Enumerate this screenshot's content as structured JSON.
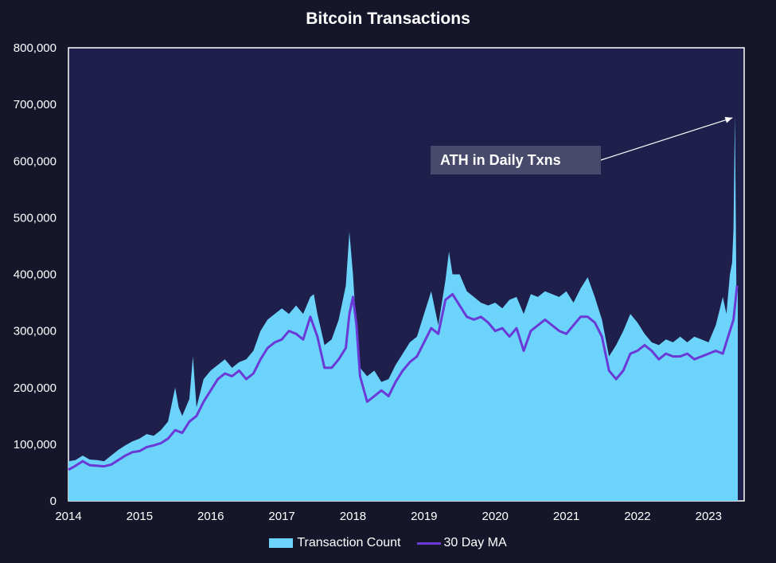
{
  "chart_data": {
    "type": "area",
    "title": "Bitcoin Transactions",
    "xlabel": "",
    "ylabel": "",
    "x_ticks": [
      "2014",
      "2015",
      "2016",
      "2017",
      "2018",
      "2019",
      "2020",
      "2021",
      "2022",
      "2023"
    ],
    "y_ticks": [
      "0",
      "100,000",
      "200,000",
      "300,000",
      "400,000",
      "500,000",
      "600,000",
      "700,000",
      "800,000"
    ],
    "xlim": [
      2014.0,
      2023.5
    ],
    "ylim": [
      0,
      800000
    ],
    "grid": false,
    "legend_position": "bottom",
    "annotation": {
      "text": "ATH in Daily Txns",
      "points_to": [
        2023.37,
        682000
      ]
    },
    "colors": {
      "background": "#16162b",
      "plot_area": "#1f1f4b",
      "area": "#6cd4fb",
      "ma_line": "#6a39d6",
      "annotation_box": "#474a6b"
    },
    "series": [
      {
        "name": "Transaction Count",
        "type": "area",
        "x": [
          2014.0,
          2014.1,
          2014.2,
          2014.3,
          2014.4,
          2014.5,
          2014.6,
          2014.7,
          2014.8,
          2014.9,
          2015.0,
          2015.1,
          2015.2,
          2015.3,
          2015.4,
          2015.5,
          2015.55,
          2015.6,
          2015.7,
          2015.75,
          2015.8,
          2015.9,
          2016.0,
          2016.1,
          2016.2,
          2016.3,
          2016.4,
          2016.5,
          2016.6,
          2016.7,
          2016.8,
          2016.9,
          2017.0,
          2017.1,
          2017.2,
          2017.3,
          2017.4,
          2017.45,
          2017.5,
          2017.6,
          2017.7,
          2017.8,
          2017.9,
          2017.95,
          2018.0,
          2018.05,
          2018.1,
          2018.2,
          2018.3,
          2018.4,
          2018.5,
          2018.6,
          2018.7,
          2018.8,
          2018.9,
          2019.0,
          2019.1,
          2019.2,
          2019.3,
          2019.35,
          2019.4,
          2019.5,
          2019.6,
          2019.7,
          2019.8,
          2019.9,
          2020.0,
          2020.1,
          2020.2,
          2020.3,
          2020.4,
          2020.5,
          2020.6,
          2020.7,
          2020.8,
          2020.9,
          2021.0,
          2021.1,
          2021.2,
          2021.3,
          2021.4,
          2021.5,
          2021.6,
          2021.7,
          2021.8,
          2021.9,
          2022.0,
          2022.1,
          2022.2,
          2022.3,
          2022.4,
          2022.5,
          2022.6,
          2022.7,
          2022.8,
          2022.9,
          2023.0,
          2023.1,
          2023.2,
          2023.25,
          2023.3,
          2023.33,
          2023.35,
          2023.37,
          2023.39,
          2023.41
        ],
        "values": [
          70000,
          72000,
          80000,
          73000,
          72000,
          70000,
          80000,
          90000,
          98000,
          105000,
          110000,
          118000,
          115000,
          125000,
          140000,
          200000,
          165000,
          150000,
          180000,
          255000,
          165000,
          215000,
          230000,
          240000,
          250000,
          235000,
          245000,
          250000,
          265000,
          300000,
          320000,
          330000,
          340000,
          330000,
          345000,
          330000,
          360000,
          365000,
          330000,
          275000,
          285000,
          320000,
          380000,
          475000,
          400000,
          300000,
          235000,
          220000,
          230000,
          210000,
          215000,
          240000,
          260000,
          280000,
          290000,
          330000,
          370000,
          310000,
          390000,
          440000,
          400000,
          400000,
          370000,
          360000,
          350000,
          345000,
          350000,
          340000,
          355000,
          360000,
          330000,
          365000,
          360000,
          370000,
          365000,
          360000,
          370000,
          350000,
          375000,
          395000,
          360000,
          320000,
          255000,
          275000,
          300000,
          330000,
          315000,
          295000,
          280000,
          275000,
          285000,
          280000,
          290000,
          280000,
          290000,
          285000,
          280000,
          310000,
          360000,
          330000,
          400000,
          420000,
          480000,
          682000,
          380000,
          375000
        ]
      },
      {
        "name": "30 Day MA",
        "type": "line",
        "x": [
          2014.0,
          2014.1,
          2014.2,
          2014.3,
          2014.4,
          2014.5,
          2014.6,
          2014.7,
          2014.8,
          2014.9,
          2015.0,
          2015.1,
          2015.2,
          2015.3,
          2015.4,
          2015.5,
          2015.6,
          2015.7,
          2015.8,
          2015.9,
          2016.0,
          2016.1,
          2016.2,
          2016.3,
          2016.4,
          2016.5,
          2016.6,
          2016.7,
          2016.8,
          2016.9,
          2017.0,
          2017.1,
          2017.2,
          2017.3,
          2017.4,
          2017.5,
          2017.6,
          2017.7,
          2017.8,
          2017.9,
          2017.95,
          2018.0,
          2018.05,
          2018.1,
          2018.2,
          2018.3,
          2018.4,
          2018.5,
          2018.6,
          2018.7,
          2018.8,
          2018.9,
          2019.0,
          2019.1,
          2019.2,
          2019.3,
          2019.4,
          2019.5,
          2019.6,
          2019.7,
          2019.8,
          2019.9,
          2020.0,
          2020.1,
          2020.2,
          2020.3,
          2020.4,
          2020.5,
          2020.6,
          2020.7,
          2020.8,
          2020.9,
          2021.0,
          2021.1,
          2021.2,
          2021.3,
          2021.4,
          2021.5,
          2021.6,
          2021.7,
          2021.8,
          2021.9,
          2022.0,
          2022.1,
          2022.2,
          2022.3,
          2022.4,
          2022.5,
          2022.6,
          2022.7,
          2022.8,
          2022.9,
          2023.0,
          2023.1,
          2023.2,
          2023.3,
          2023.35,
          2023.4
        ],
        "values": [
          55000,
          62000,
          70000,
          63000,
          62000,
          61000,
          64000,
          72000,
          80000,
          86000,
          88000,
          95000,
          98000,
          102000,
          110000,
          125000,
          120000,
          140000,
          150000,
          175000,
          195000,
          215000,
          225000,
          220000,
          230000,
          215000,
          225000,
          250000,
          270000,
          280000,
          285000,
          300000,
          295000,
          285000,
          325000,
          290000,
          235000,
          235000,
          250000,
          270000,
          330000,
          360000,
          310000,
          220000,
          175000,
          185000,
          195000,
          185000,
          210000,
          230000,
          245000,
          255000,
          280000,
          305000,
          295000,
          355000,
          365000,
          345000,
          325000,
          320000,
          325000,
          315000,
          300000,
          305000,
          290000,
          305000,
          265000,
          300000,
          310000,
          320000,
          310000,
          300000,
          295000,
          310000,
          325000,
          325000,
          315000,
          290000,
          230000,
          215000,
          230000,
          260000,
          265000,
          275000,
          265000,
          250000,
          260000,
          255000,
          255000,
          260000,
          250000,
          255000,
          260000,
          265000,
          260000,
          300000,
          320000,
          380000
        ]
      }
    ]
  }
}
